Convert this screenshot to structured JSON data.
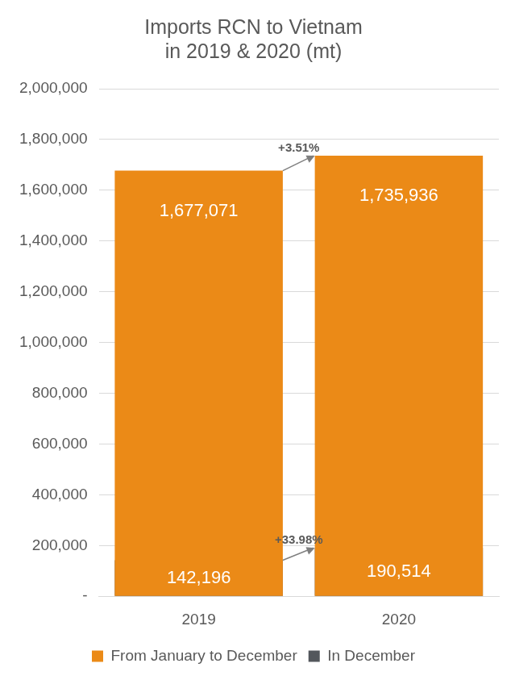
{
  "chart_data": {
    "type": "bar",
    "title": [
      "Imports RCN to Vietnam",
      "in 2019 & 2020 (mt)"
    ],
    "categories": [
      "2019",
      "2020"
    ],
    "series": [
      {
        "name": "From January to December",
        "color": "#EB8A17",
        "values": [
          1677071,
          1735936
        ],
        "value_labels": [
          "1,677,071",
          "1,735,936"
        ]
      },
      {
        "name": "In December",
        "color": "#53575C",
        "values": [
          142196,
          190514
        ],
        "value_labels": [
          "142,196",
          "190,514"
        ]
      }
    ],
    "ylim": [
      0,
      2000000
    ],
    "yticks": [
      {
        "value": 0,
        "label": "-"
      },
      {
        "value": 200000,
        "label": "200,000"
      },
      {
        "value": 400000,
        "label": "400,000"
      },
      {
        "value": 600000,
        "label": "600,000"
      },
      {
        "value": 800000,
        "label": "800,000"
      },
      {
        "value": 1000000,
        "label": "1,000,000"
      },
      {
        "value": 1200000,
        "label": "1,200,000"
      },
      {
        "value": 1400000,
        "label": "1,400,000"
      },
      {
        "value": 1600000,
        "label": "1,600,000"
      },
      {
        "value": 1800000,
        "label": "1,800,000"
      },
      {
        "value": 2000000,
        "label": "2,000,000"
      }
    ],
    "grid": true,
    "legend": "bottom",
    "data_labels": true,
    "annotations": [
      {
        "text": "+3.51%",
        "series": "From January to December"
      },
      {
        "text": "+33.98%",
        "series": "In December"
      }
    ]
  }
}
